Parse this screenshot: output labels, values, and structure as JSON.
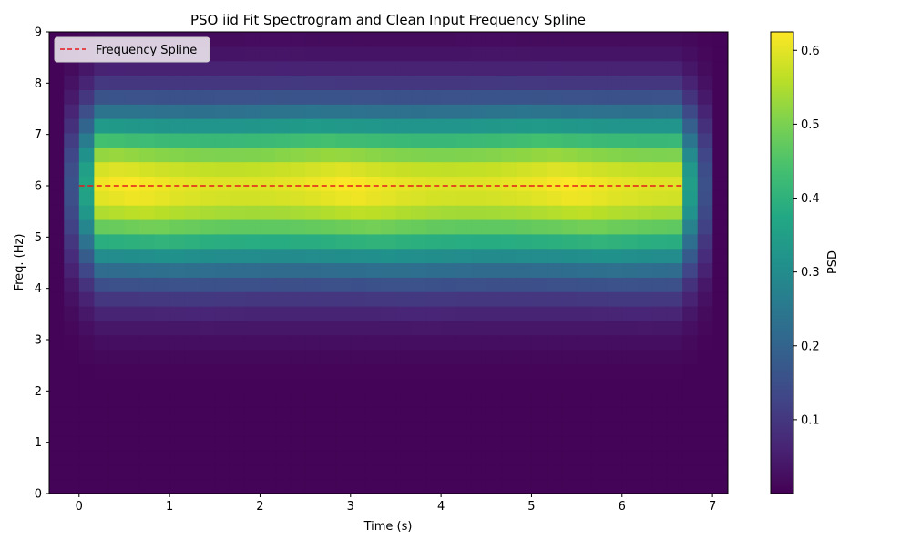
{
  "chart_data": {
    "type": "heatmap",
    "title": "PSO iid Fit Spectrogram and Clean Input Frequency Spline",
    "xlabel": "Time (s)",
    "ylabel": "Freq. (Hz)",
    "colorbar_label": "PSD",
    "colormap": "viridis",
    "xlim": [
      -0.33,
      7.17
    ],
    "ylim": [
      0,
      9
    ],
    "color_range": [
      0.0,
      0.625
    ],
    "x_ticks": [
      "0",
      "1",
      "2",
      "3",
      "4",
      "5",
      "6",
      "7"
    ],
    "y_ticks": [
      "0",
      "1",
      "2",
      "3",
      "4",
      "5",
      "6",
      "7",
      "8",
      "9"
    ],
    "colorbar_ticks": [
      "0.1",
      "0.2",
      "0.3",
      "0.4",
      "0.5",
      "0.6"
    ],
    "time_bin_width": 0.1667,
    "freq_bin_width": 0.28125,
    "time_bin_start": -0.333,
    "time_bins": 45,
    "freq_bins": 32,
    "signal": {
      "center_freq": 6.0,
      "peak_psd": 0.62,
      "active_time_range": [
        0.0,
        6.83
      ]
    },
    "series": [
      {
        "name": "Frequency Spline",
        "type": "line",
        "style": "dashed",
        "color": "#e41a1c",
        "x": [
          0,
          6.67
        ],
        "y": [
          6.0,
          6.0
        ]
      }
    ],
    "legend": {
      "placement": "top-left",
      "entries": [
        "Frequency Spline"
      ]
    },
    "grid": false
  }
}
